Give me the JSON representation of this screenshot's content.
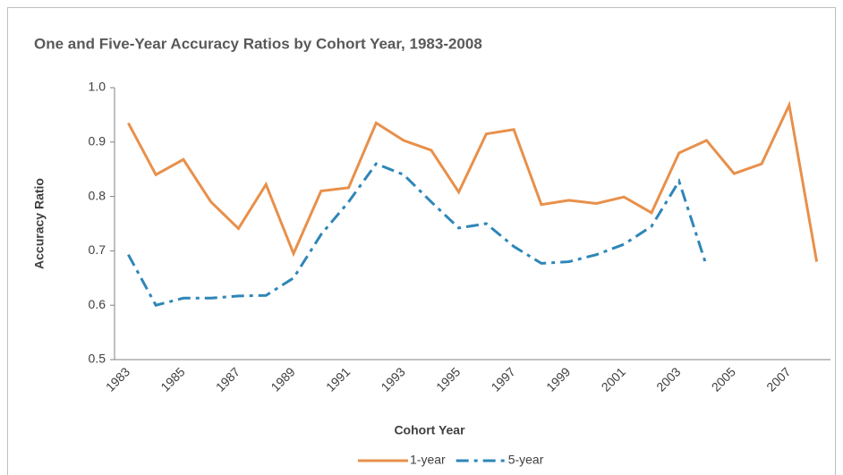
{
  "chart_data": {
    "type": "line",
    "title": "One and Five-Year Accuracy Ratios by Cohort Year, 1983-2008",
    "x_label": "Cohort Year",
    "y_label": "Accuracy Ratio",
    "categories": [
      "1983",
      null,
      "1985",
      null,
      "1987",
      null,
      "1989",
      null,
      "1991",
      null,
      "1993",
      null,
      "1995",
      null,
      "1997",
      null,
      "1999",
      null,
      "2001",
      null,
      "2003",
      null,
      "2005",
      null,
      "2007",
      null
    ],
    "series": [
      {
        "name": "1-year",
        "color": "#e8904b",
        "dash": "solid",
        "values": [
          0.935,
          0.84,
          0.868,
          0.79,
          0.741,
          0.822,
          0.695,
          0.81,
          0.816,
          0.935,
          0.903,
          0.885,
          0.808,
          0.915,
          0.923,
          0.785,
          0.793,
          0.787,
          0.799,
          0.77,
          0.88,
          0.903,
          0.842,
          0.86,
          0.968,
          0.68
        ]
      },
      {
        "name": "5-year",
        "color": "#2e86b8",
        "dash": "dashdot",
        "values": [
          0.693,
          0.6,
          0.613,
          0.613,
          0.617,
          0.618,
          0.65,
          0.73,
          0.79,
          0.86,
          0.84,
          0.79,
          0.742,
          0.75,
          0.708,
          0.677,
          0.68,
          0.693,
          0.712,
          0.745,
          0.828,
          0.672,
          null,
          null,
          null,
          null
        ]
      }
    ],
    "ylim": [
      0.5,
      1.0
    ],
    "yticks": [
      {
        "value": 0.5,
        "label": "0.5"
      },
      {
        "value": 0.6,
        "label": "0.6"
      },
      {
        "value": 0.7,
        "label": "0.7"
      },
      {
        "value": 0.8,
        "label": "0.8"
      },
      {
        "value": 0.9,
        "label": "0.9"
      },
      {
        "value": 1.0,
        "label": "1.0"
      }
    ],
    "grid": false,
    "legend": "bottom"
  }
}
